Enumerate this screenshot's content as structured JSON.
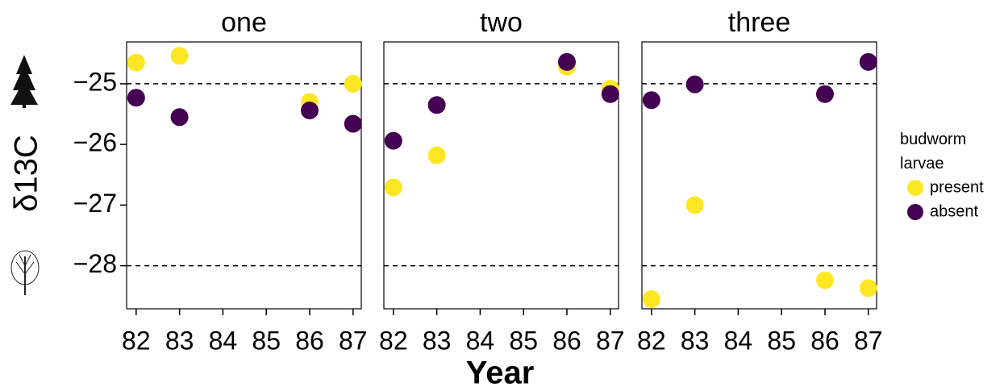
{
  "chart_data": {
    "type": "scatter",
    "xlabel": "Year",
    "ylabel": "δ13C",
    "legend_title": "budworm larvae",
    "series": [
      {
        "name": "present",
        "color": "#FDE725"
      },
      {
        "name": "absent",
        "color": "#440154"
      }
    ],
    "xlim": [
      81.78,
      87.19
    ],
    "xticks": [
      82,
      83,
      84,
      85,
      86,
      87
    ],
    "ylim": [
      -28.71,
      -24.31
    ],
    "yticks": [
      {
        "value": -25,
        "label": "−25"
      },
      {
        "value": -26,
        "label": "−26"
      },
      {
        "value": -27,
        "label": "−27"
      },
      {
        "value": -28,
        "label": "−28"
      }
    ],
    "reference_lines": [
      -25,
      -28
    ],
    "panels": [
      {
        "title": "one",
        "x": [
          82,
          83,
          86,
          87
        ],
        "series": [
          {
            "values": [
              -24.65,
              -24.54,
              -25.3,
              -25.0
            ]
          },
          {
            "values": [
              -25.23,
              -25.55,
              -25.44,
              -25.66
            ]
          }
        ]
      },
      {
        "title": "two",
        "x": [
          82,
          83,
          86,
          87
        ],
        "series": [
          {
            "values": [
              -26.71,
              -26.18,
              -24.72,
              -25.08
            ]
          },
          {
            "values": [
              -25.94,
              -25.35,
              -24.64,
              -25.17
            ]
          }
        ]
      },
      {
        "title": "three",
        "x": [
          82,
          83,
          86,
          87
        ],
        "series": [
          {
            "values": [
              -28.55,
              -27.0,
              -28.24,
              -28.37
            ]
          },
          {
            "values": [
              -25.27,
              -25.01,
              -25.17,
              -24.64
            ]
          }
        ]
      }
    ]
  }
}
